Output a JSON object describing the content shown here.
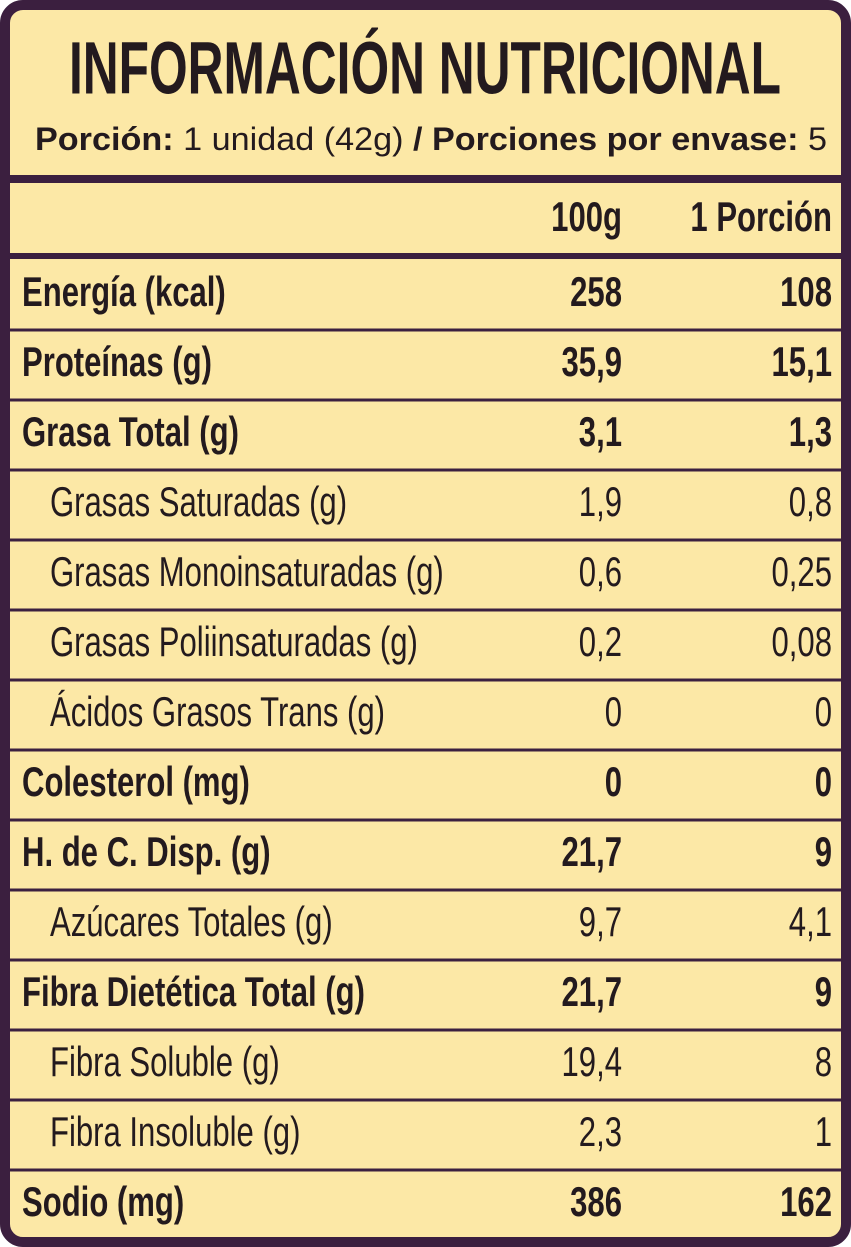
{
  "header": {
    "title": "INFORMACIÓN NUTRICIONAL",
    "subtitle": [
      {
        "text": "Porción:",
        "bold": true
      },
      {
        "text": " 1 unidad (42g) ",
        "bold": false
      },
      {
        "text": "/ Porciones por envase:",
        "bold": true
      },
      {
        "text": " 5",
        "bold": false
      }
    ]
  },
  "table": {
    "columns": [
      "100g",
      "1 Porción"
    ],
    "rows": [
      {
        "label": "Energía (kcal)",
        "per_100g": "258",
        "per_portion": "108",
        "bold": true
      },
      {
        "label": "Proteínas (g)",
        "per_100g": "35,9",
        "per_portion": "15,1",
        "bold": true
      },
      {
        "label": "Grasa Total (g)",
        "per_100g": "3,1",
        "per_portion": "1,3",
        "bold": true
      },
      {
        "label": "Grasas Saturadas (g)",
        "per_100g": "1,9",
        "per_portion": "0,8",
        "bold": false
      },
      {
        "label": "Grasas Monoinsaturadas (g)",
        "per_100g": "0,6",
        "per_portion": "0,25",
        "bold": false
      },
      {
        "label": "Grasas Poliinsaturadas (g)",
        "per_100g": "0,2",
        "per_portion": "0,08",
        "bold": false
      },
      {
        "label": "Ácidos Grasos Trans (g)",
        "per_100g": "0",
        "per_portion": "0",
        "bold": false
      },
      {
        "label": "Colesterol (mg)",
        "per_100g": "0",
        "per_portion": "0",
        "bold": true
      },
      {
        "label": "H. de C. Disp. (g)",
        "per_100g": "21,7",
        "per_portion": "9",
        "bold": true
      },
      {
        "label": "Azúcares Totales (g)",
        "per_100g": "9,7",
        "per_portion": "4,1",
        "bold": false
      },
      {
        "label": "Fibra Dietética Total (g)",
        "per_100g": "21,7",
        "per_portion": "9",
        "bold": true
      },
      {
        "label": "Fibra Soluble (g)",
        "per_100g": "19,4",
        "per_portion": "8",
        "bold": false
      },
      {
        "label": "Fibra Insoluble (g)",
        "per_100g": "2,3",
        "per_portion": "1",
        "bold": false
      },
      {
        "label": "Sodio (mg)",
        "per_100g": "386",
        "per_portion": "162",
        "bold": true
      }
    ]
  }
}
